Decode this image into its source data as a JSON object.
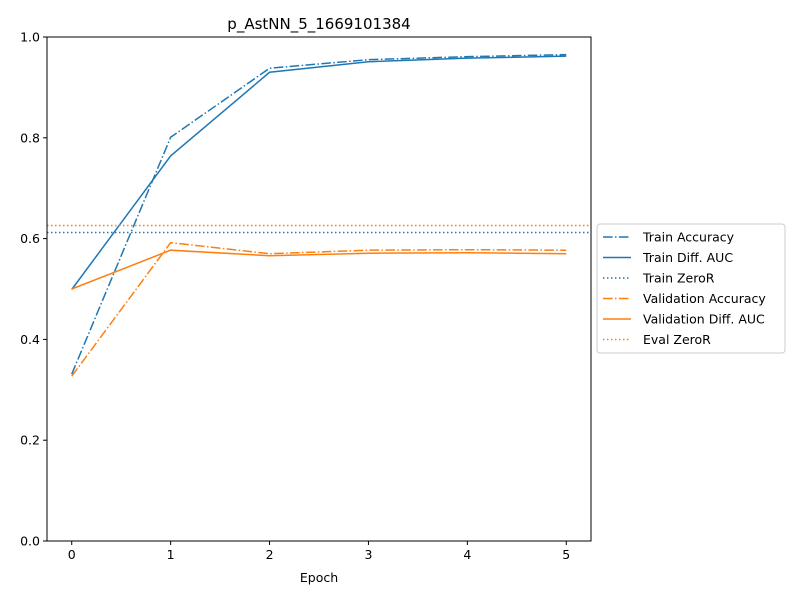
{
  "chart_data": {
    "type": "line",
    "title": "p_AstNN_5_1669101384",
    "xlabel": "Epoch",
    "ylabel": "",
    "xlim": [
      -0.25,
      5.25
    ],
    "ylim": [
      0.0,
      1.0
    ],
    "x_ticks": [
      0,
      1,
      2,
      3,
      4,
      5
    ],
    "y_ticks": [
      0.0,
      0.2,
      0.4,
      0.6,
      0.8,
      1.0
    ],
    "grid": false,
    "legend_position": "outside-right",
    "x": [
      0,
      1,
      2,
      3,
      4,
      5
    ],
    "series": [
      {
        "name": "Train Accuracy",
        "values": [
          0.331,
          0.801,
          0.938,
          0.955,
          0.961,
          0.965
        ],
        "color": "#1f77b4",
        "style": "dashdot"
      },
      {
        "name": "Train Diff. AUC",
        "values": [
          0.499,
          0.764,
          0.93,
          0.951,
          0.958,
          0.962
        ],
        "color": "#1f77b4",
        "style": "solid"
      },
      {
        "name": "Train ZeroR",
        "values": [
          0.612,
          0.612,
          0.612,
          0.612,
          0.612,
          0.612
        ],
        "color": "#1f77b4",
        "style": "dotted",
        "horizontal": true
      },
      {
        "name": "Validation Accuracy",
        "values": [
          0.327,
          0.592,
          0.57,
          0.577,
          0.578,
          0.577
        ],
        "color": "#ff7f0e",
        "style": "dashdot"
      },
      {
        "name": "Validation Diff. AUC",
        "values": [
          0.5,
          0.577,
          0.566,
          0.571,
          0.572,
          0.57
        ],
        "color": "#ff7f0e",
        "style": "solid"
      },
      {
        "name": "Eval ZeroR",
        "values": [
          0.626,
          0.626,
          0.626,
          0.626,
          0.626,
          0.626
        ],
        "color": "#ff7f0e",
        "style": "dotted",
        "horizontal": true
      }
    ]
  }
}
